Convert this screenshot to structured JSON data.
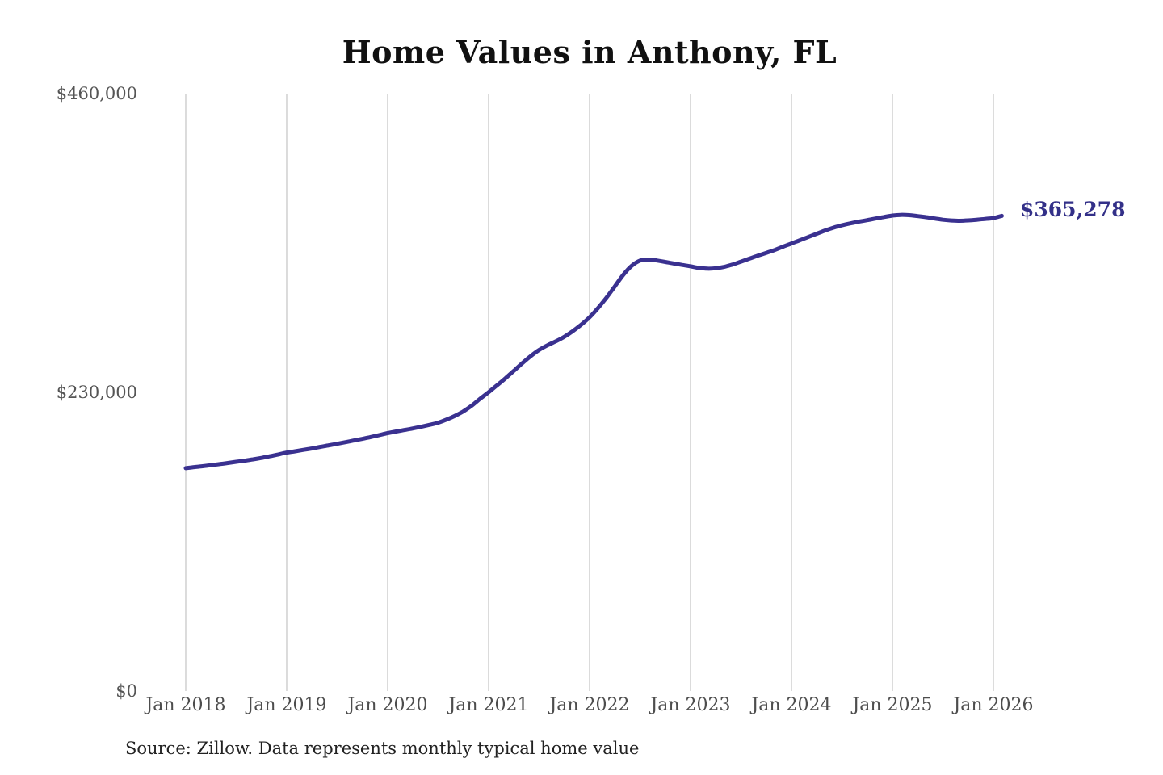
{
  "page": {
    "background": "#ffffff"
  },
  "chart": {
    "title": "Home Values in Anthony, FL",
    "end_label": "$365,278",
    "source": "Source: Zillow. Data represents monthly typical home value",
    "colors": {
      "line": "#3a3190",
      "end_label": "#333088",
      "grid": "#cccccc",
      "title": "#111111",
      "x_axis_text": "#4d4d4d",
      "y_axis_text": "#555555",
      "source_text": "#222222"
    }
  },
  "chart_data": {
    "type": "line",
    "title": "Home Values in Anthony, FL",
    "series_name": "Monthly typical home value",
    "unit": "USD",
    "x_start": "2018-01",
    "x_interval": "monthly",
    "x_tick_labels": [
      "Jan 2018",
      "Jan 2019",
      "Jan 2020",
      "Jan 2021",
      "Jan 2022",
      "Jan 2023",
      "Jan 2024",
      "Jan 2025",
      "Jan 2026"
    ],
    "y_ticks": [
      {
        "label": "$460,000",
        "value": 460000
      },
      {
        "label": "$230,000",
        "value": 230000
      },
      {
        "label": "$0",
        "value": 0
      }
    ],
    "ylim": [
      0,
      460000
    ],
    "grid": "vertical-only",
    "legend": "none",
    "end_value": 365278,
    "values": [
      171000,
      171800,
      172500,
      173300,
      174100,
      175000,
      175900,
      176800,
      177800,
      178900,
      180200,
      181600,
      183000,
      184000,
      185100,
      186200,
      187400,
      188600,
      189800,
      191000,
      192300,
      193600,
      195000,
      196500,
      198000,
      199200,
      200400,
      201600,
      202900,
      204400,
      206000,
      208400,
      211300,
      214800,
      219200,
      224500,
      229500,
      234800,
      240200,
      246000,
      251800,
      257300,
      262000,
      265600,
      268700,
      272200,
      276500,
      281500,
      287200,
      294300,
      302200,
      311000,
      319800,
      326800,
      330800,
      331600,
      330900,
      329800,
      328600,
      327500,
      326400,
      325200,
      324600,
      324900,
      326000,
      327800,
      330000,
      332300,
      334600,
      336800,
      339000,
      341500,
      344000,
      346500,
      349000,
      351500,
      354000,
      356200,
      358000,
      359500,
      360800,
      362000,
      363200,
      364400,
      365500,
      366000,
      365800,
      365100,
      364300,
      363300,
      362300,
      361700,
      361500,
      361800,
      362300,
      362900,
      363600,
      365278
    ]
  }
}
